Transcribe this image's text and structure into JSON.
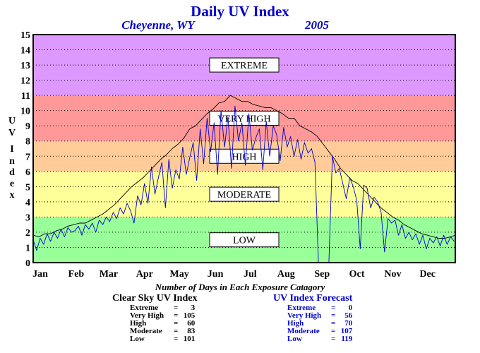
{
  "chart_data": {
    "type": "line",
    "title": "Daily UV Index",
    "location": "Cheyenne, WY",
    "year": "2005",
    "ylabel": "UV Index",
    "ylim": [
      0,
      15
    ],
    "yticks": [
      "0",
      "1",
      "2",
      "3",
      "4",
      "5",
      "6",
      "7",
      "8",
      "9",
      "10",
      "11",
      "12",
      "13",
      "14",
      "15"
    ],
    "xticks": [
      "Jan",
      "Feb",
      "Mar",
      "Apr",
      "May",
      "Jun",
      "Jul",
      "Aug",
      "Sep",
      "Oct",
      "Nov",
      "Dec"
    ],
    "xlim": [
      1,
      365
    ],
    "grid": true,
    "categories": [
      {
        "label": "LOW",
        "range": [
          0,
          3
        ],
        "color": "#99ff99"
      },
      {
        "label": "MODERATE",
        "range": [
          3,
          6
        ],
        "color": "#ffff99"
      },
      {
        "label": "HIGH",
        "range": [
          6,
          8
        ],
        "color": "#ffcc99"
      },
      {
        "label": "VERY HIGH",
        "range": [
          8,
          11
        ],
        "color": "#ff9999"
      },
      {
        "label": "EXTREME",
        "range": [
          11,
          15
        ],
        "color": "#dd99ff"
      }
    ],
    "series": [
      {
        "name": "Clear Sky UV Index",
        "color": "#000000",
        "x": [
          1,
          6,
          11,
          16,
          21,
          26,
          31,
          36,
          41,
          46,
          51,
          56,
          61,
          66,
          71,
          76,
          81,
          86,
          91,
          96,
          101,
          106,
          111,
          116,
          121,
          126,
          131,
          136,
          141,
          146,
          151,
          156,
          161,
          166,
          171,
          176,
          181,
          186,
          191,
          196,
          201,
          206,
          211,
          216,
          221,
          226,
          231,
          236,
          241,
          246,
          251,
          256,
          261,
          266,
          271,
          276,
          281,
          286,
          291,
          296,
          301,
          306,
          311,
          316,
          321,
          326,
          331,
          336,
          341,
          346,
          351,
          356,
          361,
          365
        ],
        "y": [
          1.8,
          1.7,
          1.9,
          1.9,
          2.1,
          2.2,
          2.4,
          2.5,
          2.6,
          2.6,
          2.8,
          3.0,
          3.2,
          3.5,
          3.8,
          4.2,
          4.6,
          5.0,
          5.3,
          5.6,
          6.0,
          6.4,
          6.8,
          7.1,
          7.5,
          7.8,
          8.2,
          8.8,
          9.0,
          9.4,
          9.8,
          10.1,
          10.5,
          10.6,
          11.0,
          10.8,
          10.6,
          10.6,
          10.4,
          10.3,
          10.2,
          10.2,
          10.0,
          9.8,
          9.5,
          9.5,
          9.0,
          8.8,
          8.6,
          8.3,
          7.8,
          7.3,
          6.8,
          6.2,
          5.8,
          5.4,
          5.2,
          4.8,
          4.4,
          4.0,
          3.6,
          3.3,
          3.0,
          2.8,
          2.5,
          2.3,
          2.1,
          1.9,
          1.8,
          1.7,
          1.6,
          1.6,
          1.7,
          1.8
        ]
      },
      {
        "name": "UV Index Forecast",
        "color": "#0000cc",
        "x": [
          1,
          4,
          7,
          10,
          13,
          16,
          19,
          22,
          25,
          28,
          31,
          34,
          37,
          40,
          43,
          46,
          49,
          52,
          55,
          58,
          61,
          64,
          67,
          70,
          73,
          76,
          79,
          82,
          85,
          88,
          91,
          94,
          97,
          100,
          103,
          106,
          109,
          112,
          115,
          118,
          121,
          124,
          127,
          130,
          133,
          136,
          139,
          142,
          145,
          148,
          151,
          154,
          157,
          160,
          163,
          166,
          169,
          172,
          175,
          178,
          181,
          184,
          187,
          190,
          193,
          196,
          199,
          202,
          205,
          208,
          211,
          214,
          217,
          220,
          223,
          226,
          229,
          232,
          235,
          238,
          241,
          244,
          247,
          250,
          253,
          256,
          259,
          262,
          265,
          268,
          271,
          274,
          277,
          280,
          283,
          286,
          289,
          292,
          295,
          298,
          301,
          304,
          307,
          310,
          313,
          316,
          319,
          322,
          325,
          328,
          331,
          334,
          337,
          340,
          343,
          346,
          349,
          352,
          355,
          358,
          361,
          364
        ],
        "y": [
          1.5,
          0.8,
          1.6,
          1.2,
          1.9,
          1.4,
          2.0,
          1.6,
          2.2,
          1.7,
          2.3,
          2.0,
          2.1,
          2.4,
          1.8,
          2.5,
          2.2,
          2.6,
          2.0,
          2.8,
          2.5,
          3.0,
          2.7,
          3.3,
          2.9,
          3.6,
          3.2,
          3.9,
          3.4,
          2.6,
          4.4,
          3.8,
          5.2,
          3.9,
          6.3,
          4.5,
          5.6,
          6.6,
          3.6,
          6.8,
          4.9,
          6.1,
          5.5,
          7.6,
          5.8,
          6.9,
          7.9,
          5.4,
          8.8,
          6.5,
          9.5,
          7.3,
          9.2,
          5.8,
          10.0,
          7.6,
          9.6,
          6.2,
          10.3,
          8.0,
          9.2,
          6.4,
          9.8,
          7.4,
          8.2,
          8.8,
          6.1,
          9.3,
          7.0,
          9.0,
          8.4,
          6.7,
          8.9,
          7.6,
          8.3,
          7.0,
          8.1,
          6.8,
          7.9,
          7.2,
          7.5,
          6.6,
          0.0,
          0.0,
          0.0,
          0.0,
          7.0,
          5.9,
          6.2,
          5.2,
          4.2,
          5.6,
          5.0,
          4.1,
          0.9,
          5.1,
          4.9,
          3.6,
          4.3,
          4.0,
          3.3,
          0.7,
          2.9,
          2.6,
          2.8,
          1.8,
          2.5,
          1.6,
          2.0,
          1.5,
          1.9,
          1.2,
          1.8,
          0.9,
          1.6,
          1.3,
          1.7,
          1.1,
          1.8,
          1.2,
          1.7,
          1.4
        ]
      }
    ],
    "stats_title": "Number of Days in Each Exposure Catagory",
    "stats": [
      {
        "heading": "Clear Sky UV Index",
        "color": "#000000",
        "rows": [
          {
            "label": "Extreme",
            "value": "3"
          },
          {
            "label": "Very High",
            "value": "105"
          },
          {
            "label": "High",
            "value": "60"
          },
          {
            "label": "Moderate",
            "value": "83"
          },
          {
            "label": "Low",
            "value": "101"
          }
        ]
      },
      {
        "heading": "UV Index Forecast",
        "color": "#0000cc",
        "rows": [
          {
            "label": "Extreme",
            "value": "0"
          },
          {
            "label": "Very High",
            "value": "56"
          },
          {
            "label": "High",
            "value": "70"
          },
          {
            "label": "Moderate",
            "value": "107"
          },
          {
            "label": "Low",
            "value": "119"
          }
        ]
      }
    ]
  }
}
